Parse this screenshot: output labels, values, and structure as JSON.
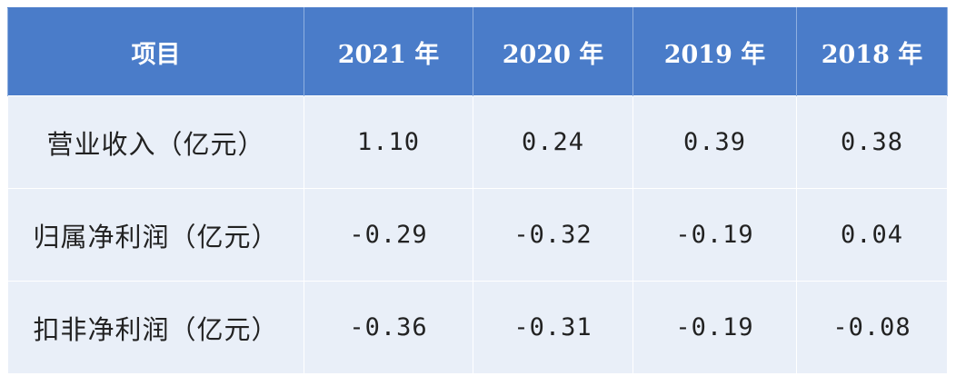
{
  "chart_data": {
    "type": "table",
    "columns": [
      "项目",
      "2021 年",
      "2020 年",
      "2019 年",
      "2018 年"
    ],
    "rows": [
      {
        "label": "营业收入（亿元）",
        "values": [
          "1.10",
          "0.24",
          "0.39",
          "0.38"
        ]
      },
      {
        "label": "归属净利润（亿元）",
        "values": [
          "-0.29",
          "-0.32",
          "-0.19",
          "0.04"
        ]
      },
      {
        "label": "扣非净利润（亿元）",
        "values": [
          "-0.36",
          "-0.31",
          "-0.19",
          "-0.08"
        ]
      }
    ]
  },
  "colors": {
    "header_bg": "#4a7cc9",
    "header_text": "#ffffff",
    "body_bg": "#e9eff8",
    "body_text": "#222222"
  }
}
